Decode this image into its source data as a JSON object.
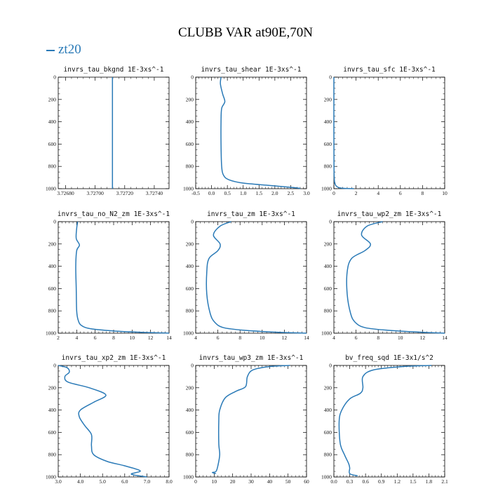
{
  "title": "CLUBB VAR at90E,70N",
  "legend": {
    "series_name": "zt20",
    "color": "#2a7ab7"
  },
  "chart_data": [
    {
      "type": "line",
      "title": "invrs_tau_bkgnd",
      "units": "1E-3xs^-1",
      "xlim": [
        3.72675,
        3.7275
      ],
      "xticks": [
        3.7268,
        3.727,
        3.7272,
        3.7274
      ],
      "tick_decimals": 5,
      "ylim": [
        0,
        1000
      ],
      "yticks": [
        0,
        200,
        400,
        600,
        800,
        1000
      ],
      "series": [
        {
          "name": "zt20",
          "x": [
            3.727117,
            3.727117,
            3.727117
          ],
          "y": [
            0,
            500,
            1000
          ]
        }
      ]
    },
    {
      "type": "line",
      "title": "invrs_tau_shear",
      "units": "1E-3xs^-1",
      "xlim": [
        -0.5,
        3.0
      ],
      "xticks": [
        -0.5,
        0,
        0.5,
        1,
        1.5,
        2,
        2.5,
        3
      ],
      "tick_decimals": 1,
      "ylim": [
        0,
        1000
      ],
      "yticks": [
        0,
        200,
        400,
        600,
        800,
        1000
      ],
      "series": [
        {
          "name": "zt20",
          "x": [
            0.3,
            0.28,
            0.35,
            0.42,
            0.32,
            0.3,
            0.3,
            0.32,
            0.38,
            0.55,
            1.0,
            1.8,
            2.4,
            2.75,
            2.8
          ],
          "y": [
            0,
            60,
            150,
            220,
            280,
            400,
            600,
            800,
            880,
            920,
            950,
            970,
            985,
            995,
            1000
          ]
        }
      ]
    },
    {
      "type": "line",
      "title": "invrs_tau_sfc",
      "units": "1E-3xs^-1",
      "xlim": [
        0,
        10
      ],
      "xticks": [
        0,
        2,
        4,
        6,
        8,
        10
      ],
      "tick_decimals": 0,
      "ylim": [
        0,
        1000
      ],
      "yticks": [
        0,
        200,
        400,
        600,
        800,
        1000
      ],
      "series": [
        {
          "name": "zt20",
          "x": [
            0.0,
            0.0,
            0.01,
            0.03,
            0.08,
            0.2,
            0.45,
            0.9,
            1.8
          ],
          "y": [
            0,
            500,
            800,
            900,
            950,
            975,
            990,
            997,
            1000
          ]
        }
      ]
    },
    {
      "type": "line",
      "title": "invrs_tau_no_N2_zm",
      "units": "1E-3xs^-1",
      "xlim": [
        2,
        14
      ],
      "xticks": [
        2,
        4,
        6,
        8,
        10,
        12,
        14
      ],
      "tick_decimals": 0,
      "ylim": [
        0,
        1000
      ],
      "yticks": [
        0,
        200,
        400,
        600,
        800,
        1000
      ],
      "series": [
        {
          "name": "zt20",
          "x": [
            4.1,
            4.0,
            3.95,
            4.3,
            4.0,
            3.9,
            3.95,
            4.0,
            4.15,
            4.5,
            5.5,
            8.0,
            11.0,
            13.5,
            14.0
          ],
          "y": [
            0,
            60,
            150,
            210,
            260,
            400,
            600,
            800,
            880,
            930,
            960,
            980,
            992,
            998,
            1000
          ]
        }
      ]
    },
    {
      "type": "line",
      "title": "invrs_tau_zm",
      "units": "1E-3xs^-1",
      "xlim": [
        4,
        14
      ],
      "xticks": [
        4,
        6,
        8,
        10,
        12,
        14
      ],
      "tick_decimals": 0,
      "ylim": [
        0,
        1000
      ],
      "yticks": [
        0,
        200,
        400,
        600,
        800,
        1000
      ],
      "series": [
        {
          "name": "zt20",
          "x": [
            7.2,
            6.2,
            5.6,
            6.2,
            6.0,
            5.2,
            5.0,
            5.0,
            5.3,
            5.7,
            6.5,
            8.5,
            11.5,
            14.0
          ],
          "y": [
            0,
            40,
            120,
            200,
            260,
            330,
            450,
            650,
            820,
            900,
            950,
            975,
            992,
            1000
          ]
        }
      ]
    },
    {
      "type": "line",
      "title": "invrs_tau_wp2_zm",
      "units": "1E-3xs^-1",
      "xlim": [
        4,
        14
      ],
      "xticks": [
        4,
        6,
        8,
        10,
        12,
        14
      ],
      "tick_decimals": 0,
      "ylim": [
        0,
        1000
      ],
      "yticks": [
        0,
        200,
        400,
        600,
        800,
        1000
      ],
      "series": [
        {
          "name": "zt20",
          "x": [
            8.4,
            7.0,
            6.5,
            7.3,
            6.8,
            5.6,
            5.2,
            5.2,
            5.5,
            5.9,
            6.8,
            9.0,
            12.0,
            14.0
          ],
          "y": [
            0,
            40,
            120,
            200,
            260,
            330,
            450,
            650,
            820,
            900,
            950,
            975,
            992,
            1000
          ]
        }
      ]
    },
    {
      "type": "line",
      "title": "invrs_tau_xp2_zm",
      "units": "1E-3xs^-1",
      "xlim": [
        3,
        8
      ],
      "xticks": [
        3,
        4,
        5,
        6,
        7,
        8
      ],
      "tick_decimals": 1,
      "ylim": [
        0,
        1000
      ],
      "yticks": [
        0,
        200,
        400,
        600,
        800,
        1000
      ],
      "series": [
        {
          "name": "zt20",
          "x": [
            3.0,
            3.4,
            3.5,
            3.3,
            3.45,
            4.4,
            5.15,
            4.6,
            4.0,
            3.95,
            4.2,
            4.5,
            4.5,
            4.6,
            5.2,
            6.0,
            6.7,
            6.3,
            7.0
          ],
          "y": [
            0,
            20,
            60,
            100,
            150,
            200,
            265,
            330,
            400,
            460,
            540,
            620,
            720,
            800,
            860,
            900,
            945,
            975,
            1000
          ]
        }
      ]
    },
    {
      "type": "line",
      "title": "invrs_tau_wp3_zm",
      "units": "1E-3xs^-1",
      "xlim": [
        0,
        60
      ],
      "xticks": [
        0,
        10,
        20,
        30,
        40,
        50,
        60
      ],
      "tick_decimals": 0,
      "ylim": [
        0,
        1000
      ],
      "yticks": [
        0,
        200,
        400,
        600,
        800,
        1000
      ],
      "series": [
        {
          "name": "zt20",
          "x": [
            51,
            40,
            31,
            28,
            27,
            22,
            16,
            13,
            12.5,
            12.5,
            13,
            12,
            11,
            9,
            11
          ],
          "y": [
            0,
            10,
            40,
            100,
            190,
            230,
            290,
            400,
            500,
            700,
            800,
            900,
            950,
            960,
            970
          ]
        }
      ]
    },
    {
      "type": "line",
      "title": "bv_freq_sqd",
      "units": "1E-3x1/s^2",
      "xlim": [
        0.0,
        2.1
      ],
      "xticks": [
        0.0,
        0.3,
        0.6,
        0.9,
        1.2,
        1.5,
        1.8,
        2.1
      ],
      "tick_decimals": 1,
      "ylim": [
        0,
        1000
      ],
      "yticks": [
        0,
        200,
        400,
        600,
        800,
        1000
      ],
      "series": [
        {
          "name": "zt20",
          "x": [
            1.85,
            1.3,
            0.75,
            0.55,
            0.55,
            0.5,
            0.3,
            0.15,
            0.1,
            0.12,
            0.2,
            0.28,
            0.3,
            0.3,
            0.45
          ],
          "y": [
            0,
            10,
            40,
            100,
            200,
            250,
            300,
            400,
            500,
            700,
            800,
            880,
            920,
            970,
            990
          ]
        }
      ]
    }
  ]
}
